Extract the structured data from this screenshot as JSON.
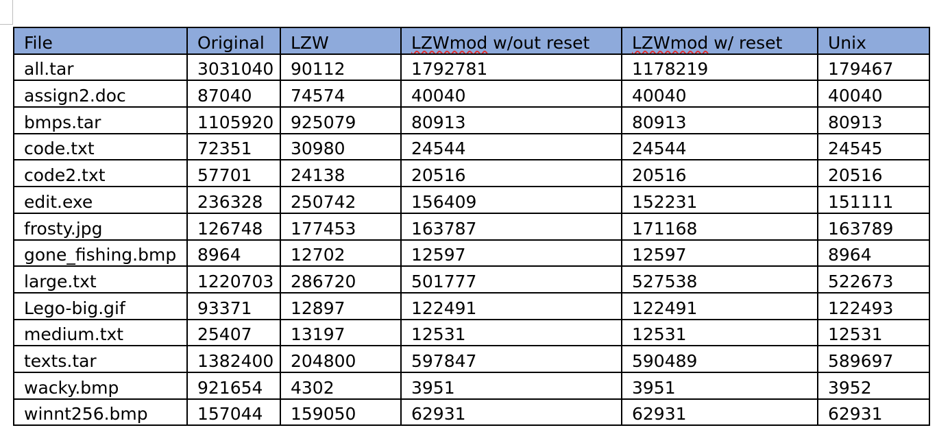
{
  "table": {
    "headers": [
      {
        "prefix": "",
        "flagged": "",
        "rest": "File"
      },
      {
        "prefix": "",
        "flagged": "",
        "rest": "Original"
      },
      {
        "prefix": "",
        "flagged": "",
        "rest": "LZW"
      },
      {
        "prefix": "",
        "flagged": "LZWmod",
        "rest": " w/out reset"
      },
      {
        "prefix": "",
        "flagged": "LZWmod",
        "rest": " w/ reset"
      },
      {
        "prefix": "",
        "flagged": "",
        "rest": "Unix"
      }
    ],
    "rows": [
      [
        "all.tar",
        "3031040",
        "90112",
        "1792781",
        "1178219",
        "179467"
      ],
      [
        "assign2.doc",
        "87040",
        "74574",
        "40040",
        "40040",
        "40040"
      ],
      [
        "bmps.tar",
        "1105920",
        "925079",
        "80913",
        "80913",
        "80913"
      ],
      [
        "code.txt",
        "72351",
        "30980",
        "24544",
        "24544",
        "24545"
      ],
      [
        "code2.txt",
        "57701",
        "24138",
        "20516",
        "20516",
        "20516"
      ],
      [
        "edit.exe",
        "236328",
        "250742",
        "156409",
        "152231",
        "151111"
      ],
      [
        "frosty.jpg",
        "126748",
        "177453",
        "163787",
        "171168",
        "163789"
      ],
      [
        "gone_fishing.bmp",
        "8964",
        "12702",
        "12597",
        "12597",
        "8964"
      ],
      [
        "large.txt",
        "1220703",
        "286720",
        "501777",
        "527538",
        "522673"
      ],
      [
        "Lego-big.gif",
        "93371",
        "12897",
        "122491",
        "122491",
        "122493"
      ],
      [
        "medium.txt",
        "25407",
        "13197",
        "12531",
        "12531",
        "12531"
      ],
      [
        "texts.tar",
        "1382400",
        "204800",
        "597847",
        "590489",
        "589697"
      ],
      [
        "wacky.bmp",
        "921654",
        "4302",
        "3951",
        "3951",
        "3952"
      ],
      [
        "winnt256.bmp",
        "157044",
        "159050",
        "62931",
        "62931",
        "62931"
      ]
    ]
  },
  "colors": {
    "header_background": "#8eaadb",
    "border": "#000000",
    "spellcheck_underline": "#e03030"
  }
}
